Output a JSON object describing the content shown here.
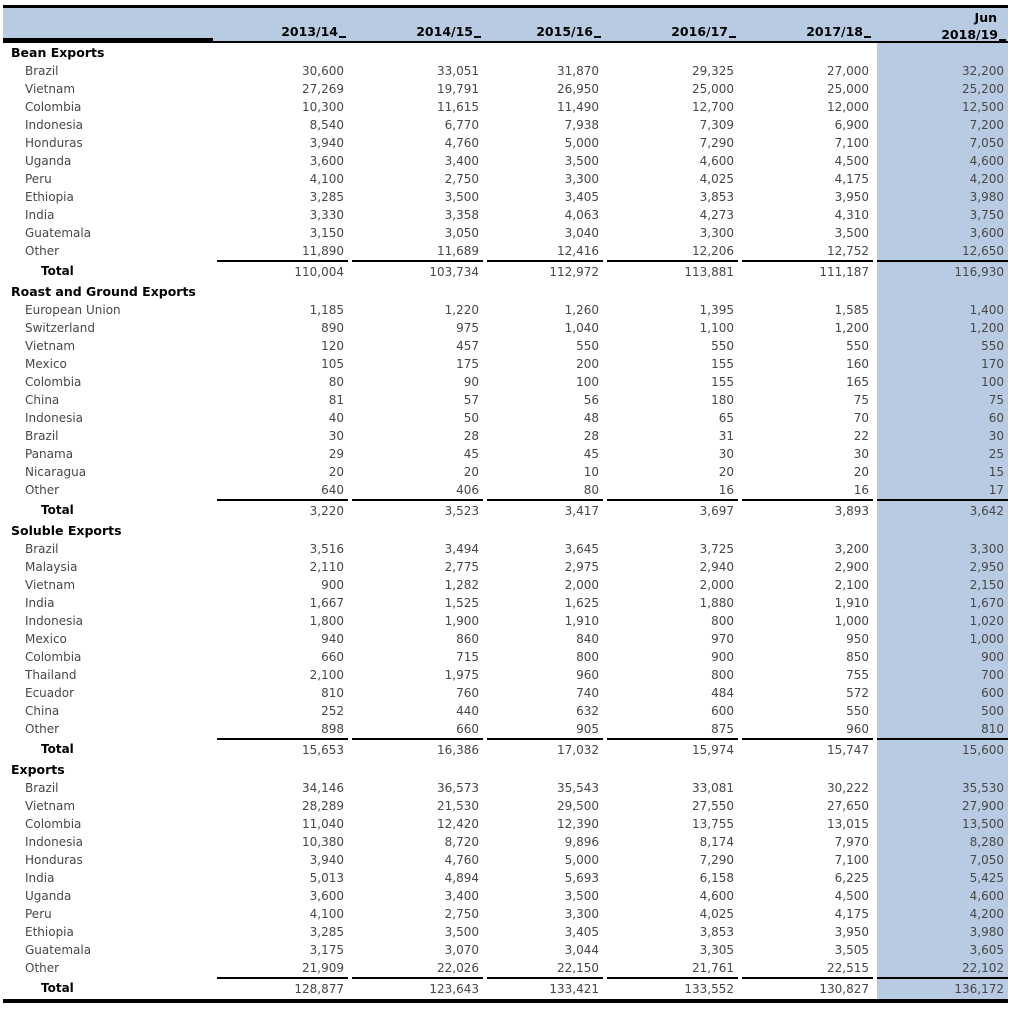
{
  "header": {
    "sub_label": "Jun",
    "columns": [
      "2013/14",
      "2014/15",
      "2015/16",
      "2016/17",
      "2017/18",
      "2018/19"
    ]
  },
  "colors": {
    "header_bg": "#b8cbe3",
    "highlight_bg": "#b8cbe3",
    "rule": "#000000",
    "body_text": "#474747"
  },
  "sections": [
    {
      "title": "Bean Exports",
      "rows": [
        {
          "label": "Brazil",
          "values": [
            "30,600",
            "33,051",
            "31,870",
            "29,325",
            "27,000",
            "32,200"
          ]
        },
        {
          "label": "Vietnam",
          "values": [
            "27,269",
            "19,791",
            "26,950",
            "25,000",
            "25,000",
            "25,200"
          ]
        },
        {
          "label": "Colombia",
          "values": [
            "10,300",
            "11,615",
            "11,490",
            "12,700",
            "12,000",
            "12,500"
          ]
        },
        {
          "label": "Indonesia",
          "values": [
            "8,540",
            "6,770",
            "7,938",
            "7,309",
            "6,900",
            "7,200"
          ]
        },
        {
          "label": "Honduras",
          "values": [
            "3,940",
            "4,760",
            "5,000",
            "7,290",
            "7,100",
            "7,050"
          ]
        },
        {
          "label": "Uganda",
          "values": [
            "3,600",
            "3,400",
            "3,500",
            "4,600",
            "4,500",
            "4,600"
          ]
        },
        {
          "label": "Peru",
          "values": [
            "4,100",
            "2,750",
            "3,300",
            "4,025",
            "4,175",
            "4,200"
          ]
        },
        {
          "label": "Ethiopia",
          "values": [
            "3,285",
            "3,500",
            "3,405",
            "3,853",
            "3,950",
            "3,980"
          ]
        },
        {
          "label": "India",
          "values": [
            "3,330",
            "3,358",
            "4,063",
            "4,273",
            "4,310",
            "3,750"
          ]
        },
        {
          "label": "Guatemala",
          "values": [
            "3,150",
            "3,050",
            "3,040",
            "3,300",
            "3,500",
            "3,600"
          ]
        },
        {
          "label": "Other",
          "values": [
            "11,890",
            "11,689",
            "12,416",
            "12,206",
            "12,752",
            "12,650"
          ]
        }
      ],
      "total": {
        "label": "Total",
        "values": [
          "110,004",
          "103,734",
          "112,972",
          "113,881",
          "111,187",
          "116,930"
        ]
      }
    },
    {
      "title": "Roast and Ground Exports",
      "rows": [
        {
          "label": "European Union",
          "values": [
            "1,185",
            "1,220",
            "1,260",
            "1,395",
            "1,585",
            "1,400"
          ]
        },
        {
          "label": "Switzerland",
          "values": [
            "890",
            "975",
            "1,040",
            "1,100",
            "1,200",
            "1,200"
          ]
        },
        {
          "label": "Vietnam",
          "values": [
            "120",
            "457",
            "550",
            "550",
            "550",
            "550"
          ]
        },
        {
          "label": "Mexico",
          "values": [
            "105",
            "175",
            "200",
            "155",
            "160",
            "170"
          ]
        },
        {
          "label": "Colombia",
          "values": [
            "80",
            "90",
            "100",
            "155",
            "165",
            "100"
          ]
        },
        {
          "label": "China",
          "values": [
            "81",
            "57",
            "56",
            "180",
            "75",
            "75"
          ]
        },
        {
          "label": "Indonesia",
          "values": [
            "40",
            "50",
            "48",
            "65",
            "70",
            "60"
          ]
        },
        {
          "label": "Brazil",
          "values": [
            "30",
            "28",
            "28",
            "31",
            "22",
            "30"
          ]
        },
        {
          "label": "Panama",
          "values": [
            "29",
            "45",
            "45",
            "30",
            "30",
            "25"
          ]
        },
        {
          "label": "Nicaragua",
          "values": [
            "20",
            "20",
            "10",
            "20",
            "20",
            "15"
          ]
        },
        {
          "label": "Other",
          "values": [
            "640",
            "406",
            "80",
            "16",
            "16",
            "17"
          ]
        }
      ],
      "total": {
        "label": "Total",
        "values": [
          "3,220",
          "3,523",
          "3,417",
          "3,697",
          "3,893",
          "3,642"
        ]
      }
    },
    {
      "title": "Soluble Exports",
      "rows": [
        {
          "label": "Brazil",
          "values": [
            "3,516",
            "3,494",
            "3,645",
            "3,725",
            "3,200",
            "3,300"
          ]
        },
        {
          "label": "Malaysia",
          "values": [
            "2,110",
            "2,775",
            "2,975",
            "2,940",
            "2,900",
            "2,950"
          ]
        },
        {
          "label": "Vietnam",
          "values": [
            "900",
            "1,282",
            "2,000",
            "2,000",
            "2,100",
            "2,150"
          ]
        },
        {
          "label": "India",
          "values": [
            "1,667",
            "1,525",
            "1,625",
            "1,880",
            "1,910",
            "1,670"
          ]
        },
        {
          "label": "Indonesia",
          "values": [
            "1,800",
            "1,900",
            "1,910",
            "800",
            "1,000",
            "1,020"
          ]
        },
        {
          "label": "Mexico",
          "values": [
            "940",
            "860",
            "840",
            "970",
            "950",
            "1,000"
          ]
        },
        {
          "label": "Colombia",
          "values": [
            "660",
            "715",
            "800",
            "900",
            "850",
            "900"
          ]
        },
        {
          "label": "Thailand",
          "values": [
            "2,100",
            "1,975",
            "960",
            "800",
            "755",
            "700"
          ]
        },
        {
          "label": "Ecuador",
          "values": [
            "810",
            "760",
            "740",
            "484",
            "572",
            "600"
          ]
        },
        {
          "label": "China",
          "values": [
            "252",
            "440",
            "632",
            "600",
            "550",
            "500"
          ]
        },
        {
          "label": "Other",
          "values": [
            "898",
            "660",
            "905",
            "875",
            "960",
            "810"
          ]
        }
      ],
      "total": {
        "label": "Total",
        "values": [
          "15,653",
          "16,386",
          "17,032",
          "15,974",
          "15,747",
          "15,600"
        ]
      }
    },
    {
      "title": "Exports",
      "rows": [
        {
          "label": "Brazil",
          "values": [
            "34,146",
            "36,573",
            "35,543",
            "33,081",
            "30,222",
            "35,530"
          ]
        },
        {
          "label": "Vietnam",
          "values": [
            "28,289",
            "21,530",
            "29,500",
            "27,550",
            "27,650",
            "27,900"
          ]
        },
        {
          "label": "Colombia",
          "values": [
            "11,040",
            "12,420",
            "12,390",
            "13,755",
            "13,015",
            "13,500"
          ]
        },
        {
          "label": "Indonesia",
          "values": [
            "10,380",
            "8,720",
            "9,896",
            "8,174",
            "7,970",
            "8,280"
          ]
        },
        {
          "label": "Honduras",
          "values": [
            "3,940",
            "4,760",
            "5,000",
            "7,290",
            "7,100",
            "7,050"
          ]
        },
        {
          "label": "India",
          "values": [
            "5,013",
            "4,894",
            "5,693",
            "6,158",
            "6,225",
            "5,425"
          ]
        },
        {
          "label": "Uganda",
          "values": [
            "3,600",
            "3,400",
            "3,500",
            "4,600",
            "4,500",
            "4,600"
          ]
        },
        {
          "label": "Peru",
          "values": [
            "4,100",
            "2,750",
            "3,300",
            "4,025",
            "4,175",
            "4,200"
          ]
        },
        {
          "label": "Ethiopia",
          "values": [
            "3,285",
            "3,500",
            "3,405",
            "3,853",
            "3,950",
            "3,980"
          ]
        },
        {
          "label": "Guatemala",
          "values": [
            "3,175",
            "3,070",
            "3,044",
            "3,305",
            "3,505",
            "3,605"
          ]
        },
        {
          "label": "Other",
          "values": [
            "21,909",
            "22,026",
            "22,150",
            "21,761",
            "22,515",
            "22,102"
          ]
        }
      ],
      "total": {
        "label": "Total",
        "values": [
          "128,877",
          "123,643",
          "133,421",
          "133,552",
          "130,827",
          "136,172"
        ]
      }
    }
  ]
}
